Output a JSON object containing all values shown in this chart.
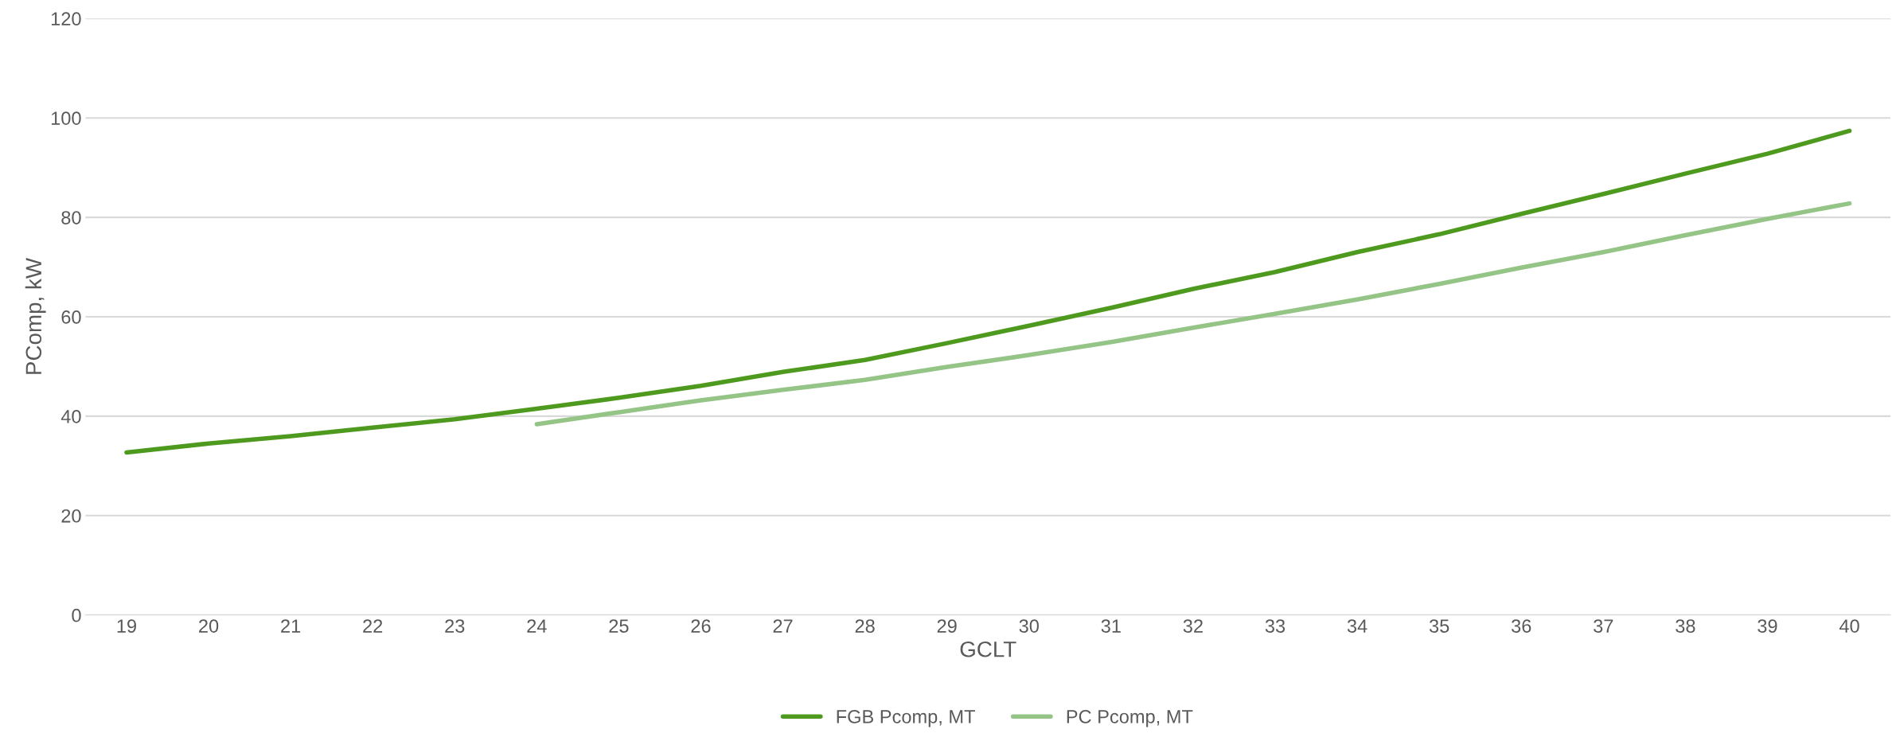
{
  "chart_data": {
    "type": "line",
    "xlabel": "GCLT",
    "ylabel": "PComp, kW",
    "categories": [
      "19",
      "20",
      "21",
      "22",
      "23",
      "24",
      "25",
      "26",
      "27",
      "28",
      "29",
      "30",
      "31",
      "32",
      "33",
      "34",
      "35",
      "36",
      "37",
      "38",
      "39",
      "40"
    ],
    "series": [
      {
        "name": "FGB Pcomp, MT",
        "color": "#4e9a1e",
        "values": [
          32.7,
          34.5,
          36.0,
          37.7,
          39.4,
          41.5,
          43.7,
          46.1,
          48.9,
          51.3,
          54.7,
          58.2,
          61.8,
          65.6,
          69.0,
          73.0,
          76.6,
          80.7,
          84.7,
          88.8,
          92.8,
          97.4
        ]
      },
      {
        "name": "PC Pcomp, MT",
        "color": "#95c487",
        "values": [
          null,
          null,
          null,
          null,
          null,
          38.4,
          40.8,
          43.2,
          45.3,
          47.3,
          49.9,
          52.3,
          54.9,
          57.8,
          60.6,
          63.5,
          66.6,
          69.9,
          73.0,
          76.4,
          79.7,
          82.8
        ]
      }
    ],
    "ylim": [
      0,
      120
    ],
    "yticks": [
      0,
      20,
      40,
      60,
      80,
      100,
      120
    ],
    "grid": "y",
    "legend": "bottom",
    "marker": "none",
    "line_style": "solid"
  }
}
